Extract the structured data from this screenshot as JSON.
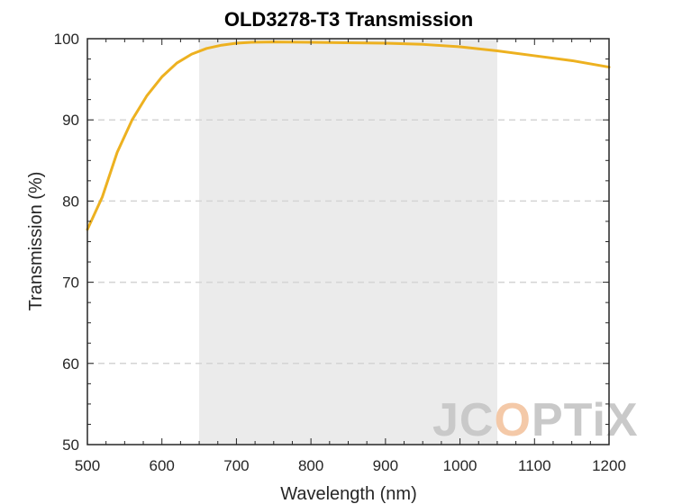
{
  "chart_data": {
    "type": "line",
    "title": "OLD3278-T3 Transmission",
    "xlabel": "Wavelength (nm)",
    "ylabel": "Transmission (%)",
    "xlim": [
      500,
      1200
    ],
    "ylim": [
      50,
      100
    ],
    "xticks": [
      "500",
      "600",
      "700",
      "800",
      "900",
      "1000",
      "1100",
      "1200"
    ],
    "yticks": [
      "50",
      "60",
      "70",
      "80",
      "90",
      "100"
    ],
    "grid": "horizontal dashed",
    "highlight_band": [
      650,
      1050
    ],
    "series": [
      {
        "color": "#EDB120",
        "x": [
          500,
          520,
          540,
          560,
          580,
          600,
          620,
          640,
          660,
          680,
          700,
          720,
          750,
          800,
          850,
          900,
          950,
          1000,
          1050,
          1100,
          1150,
          1200
        ],
        "y": [
          76.5,
          80.5,
          86.0,
          90.0,
          93.0,
          95.3,
          97.0,
          98.1,
          98.8,
          99.2,
          99.45,
          99.55,
          99.6,
          99.55,
          99.5,
          99.45,
          99.3,
          99.0,
          98.5,
          97.9,
          97.3,
          96.5
        ]
      }
    ]
  },
  "watermark": {
    "text": [
      "J",
      "C",
      "O",
      "P",
      "T",
      "i",
      "X"
    ],
    "colors": [
      "#c9c9c9",
      "#c9c9c9",
      "#f4c9a8",
      "#c9c9c9",
      "#c9c9c9",
      "#c9c9c9",
      "#c9c9c9"
    ]
  }
}
